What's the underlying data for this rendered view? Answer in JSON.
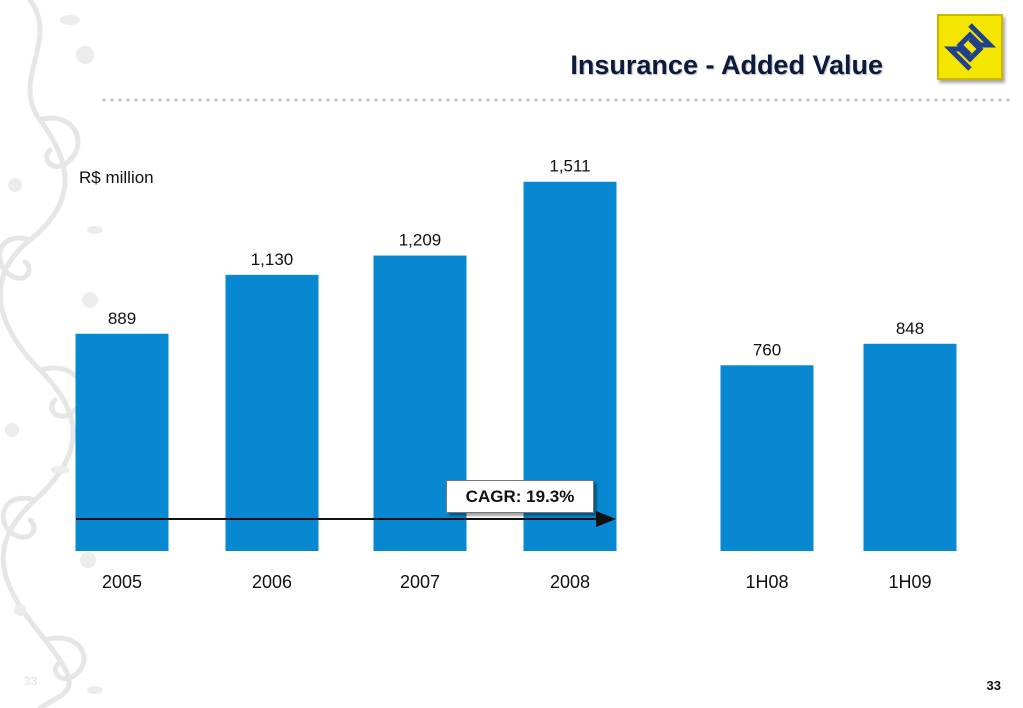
{
  "header": {
    "title": "Insurance - Added Value",
    "logo_icon": "banco-do-brasil-logo-icon",
    "logo_color": "#f5e600"
  },
  "footer": {
    "page_number": "33",
    "page_number_faint": "33"
  },
  "chart_data": {
    "type": "bar",
    "ylabel": "R$ million",
    "categories": [
      "2005",
      "2006",
      "2007",
      "2008",
      "1H08",
      "1H09"
    ],
    "values": [
      889,
      1130,
      1209,
      1511,
      760,
      848
    ],
    "value_labels": [
      "889",
      "1,130",
      "1,209",
      "1,511",
      "760",
      "848"
    ],
    "bar_color": "#0788d0",
    "ylim": [
      0,
      1600
    ],
    "grid": false,
    "annotation": {
      "text": "CAGR: 19.3%",
      "from_category": "2005",
      "to_category": "2008"
    }
  }
}
